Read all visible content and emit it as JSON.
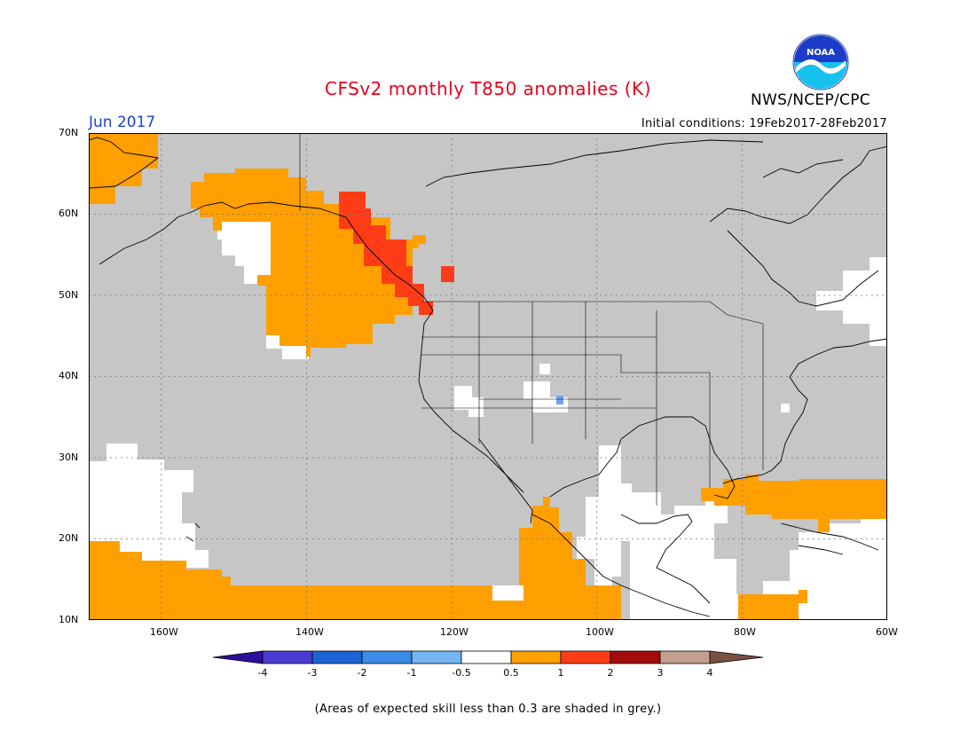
{
  "title": "CFSv2 monthly T850 anomalies (K)",
  "agency": "NWS/NCEP/CPC",
  "month": "Jun 2017",
  "initial_conditions": "Initial conditions: 19Feb2017-28Feb2017",
  "footnote": "(Areas of expected skill less than 0.3 are shaded in grey.)",
  "logo_text": "NOAA",
  "map": {
    "lon_range": [
      -170,
      -60
    ],
    "lat_range": [
      10,
      70
    ],
    "lat_ticks": [
      "70N",
      "60N",
      "50N",
      "40N",
      "30N",
      "20N",
      "10N"
    ],
    "lon_ticks": [
      "160W",
      "140W",
      "120W",
      "100W",
      "80W",
      "60W"
    ],
    "grid_lines": "dotted",
    "colors": {
      "ocean_grey": "#c6c6c6",
      "anomaly_0.5_1": "#ff9f00",
      "anomaly_1_2": "#ff3c16",
      "anomaly_neg_0.5_neg_1": "#6ea9f0",
      "near_zero": "#ffffff"
    }
  },
  "legend": {
    "ticks": [
      "-4",
      "-3",
      "-2",
      "-1",
      "-0.5",
      "0.5",
      "1",
      "2",
      "3",
      "4"
    ],
    "colors": [
      "#2d0f9c",
      "#4a3cd2",
      "#1c63d4",
      "#3a8ce8",
      "#74b6f2",
      "#ffffff",
      "#ff9f00",
      "#ff3c16",
      "#a40c0c",
      "#c29e8d",
      "#7a5044"
    ]
  }
}
